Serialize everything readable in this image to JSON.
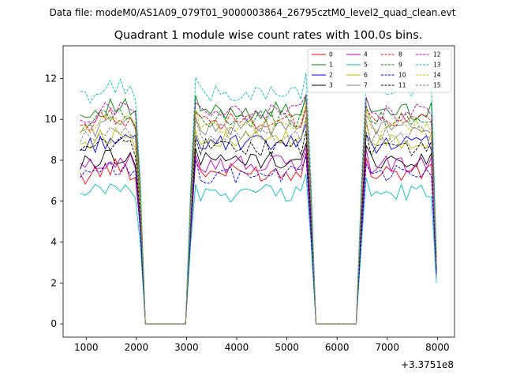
{
  "figure": {
    "suptitle": "Data file: modeM0/AS1A09_079T01_9000003864_26795cztM0_level2_quad_clean.evt",
    "offset_label": "+3.3751e8"
  },
  "chart_data": {
    "type": "line",
    "title": "Quadrant 1 module wise count rates with 100.0s bins.",
    "xlabel": "",
    "ylabel": "",
    "xlim": [
      540,
      8340
    ],
    "ylim": [
      -0.65,
      13.6
    ],
    "grid": false,
    "legend_placement": "top-right",
    "legend_columns": 4,
    "x_offset": 337510000.0,
    "x_ticks": [
      1000,
      2000,
      3000,
      4000,
      5000,
      6000,
      7000,
      8000
    ],
    "x_tick_labels": [
      "1000",
      "2000",
      "3000",
      "4000",
      "5000",
      "6000",
      "7000",
      "8000"
    ],
    "y_ticks": [
      0,
      2,
      4,
      6,
      8,
      10,
      12
    ],
    "y_tick_labels": [
      "0",
      "2",
      "4",
      "6",
      "8",
      "10",
      "12"
    ],
    "series": [
      {
        "name": "0",
        "color": "#ff0000",
        "dash": "solid"
      },
      {
        "name": "1",
        "color": "#008000",
        "dash": "solid"
      },
      {
        "name": "2",
        "color": "#0000ff",
        "dash": "solid"
      },
      {
        "name": "3",
        "color": "#000000",
        "dash": "solid"
      },
      {
        "name": "4",
        "color": "#bf00bf",
        "dash": "solid"
      },
      {
        "name": "5",
        "color": "#00bfbf",
        "dash": "solid"
      },
      {
        "name": "6",
        "color": "#bfbf00",
        "dash": "solid"
      },
      {
        "name": "7",
        "color": "#808080",
        "dash": "solid"
      },
      {
        "name": "8",
        "color": "#ff0000",
        "dash": "dashed"
      },
      {
        "name": "9",
        "color": "#008000",
        "dash": "dashed"
      },
      {
        "name": "10",
        "color": "#0000ff",
        "dash": "dashed"
      },
      {
        "name": "11",
        "color": "#000000",
        "dash": "dashed"
      },
      {
        "name": "12",
        "color": "#bf00bf",
        "dash": "dashed"
      },
      {
        "name": "13",
        "color": "#00bfbf",
        "dash": "dashed"
      },
      {
        "name": "14",
        "color": "#bfbf00",
        "dash": "dashed"
      },
      {
        "name": "15",
        "color": "#808080",
        "dash": "dashed"
      }
    ]
  }
}
